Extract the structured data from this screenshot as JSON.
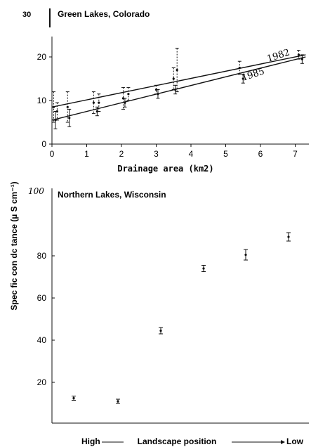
{
  "figure": {
    "shared_ylabel": "Spec fic con dc tance (µ S cm⁻¹)"
  },
  "colors": {
    "ink": "#111111",
    "paper": "#ffffff"
  },
  "chart_data": [
    {
      "type": "line",
      "title": "Green Lakes, Colorado",
      "xlabel": "Drainage area (km2)",
      "xlim": [
        0,
        7.4
      ],
      "ylim": [
        0,
        30
      ],
      "x_ticks": [
        0,
        1,
        2,
        3,
        4,
        5,
        6,
        7
      ],
      "y_ticks": [
        0,
        10,
        20
      ],
      "y_top_label": "30",
      "series": [
        {
          "name": "1982",
          "line": [
            [
              0,
              8.5
            ],
            [
              7.3,
              20.5
            ]
          ],
          "points": [
            [
              0.05,
              8.5,
              3.5
            ],
            [
              0.15,
              7.5,
              2.0
            ],
            [
              0.45,
              8.5,
              3.5
            ],
            [
              1.2,
              9.5,
              2.5
            ],
            [
              1.35,
              9.5,
              2.0
            ],
            [
              2.05,
              10.5,
              2.5
            ],
            [
              2.2,
              11.5,
              1.5
            ],
            [
              3.0,
              12.5,
              1.0
            ],
            [
              3.5,
              15.0,
              2.5
            ],
            [
              3.6,
              17.0,
              5.0
            ],
            [
              5.4,
              17.5,
              1.5
            ],
            [
              7.1,
              20.5,
              1.0
            ]
          ]
        },
        {
          "name": "1985",
          "line": [
            [
              0,
              5.5
            ],
            [
              7.3,
              20.0
            ]
          ],
          "points": [
            [
              0.1,
              5.5,
              2.0
            ],
            [
              0.5,
              6.0,
              2.0
            ],
            [
              1.3,
              7.5,
              1.0
            ],
            [
              2.1,
              9.5,
              1.0
            ],
            [
              3.05,
              11.5,
              1.0
            ],
            [
              3.55,
              12.5,
              1.0
            ],
            [
              5.5,
              15.0,
              1.0
            ],
            [
              7.2,
              19.5,
              1.0
            ]
          ]
        }
      ],
      "annotations": [
        "1982",
        "1985"
      ]
    },
    {
      "type": "scatter",
      "title": "Northern Lakes, Wisconsin",
      "xlabel": "Landscape position",
      "x_start_label": "High",
      "x_end_label": "Low",
      "ylim": [
        0,
        100
      ],
      "y_ticks": [
        20,
        40,
        60,
        80
      ],
      "y_top_label": "100",
      "x": [
        1,
        2,
        3,
        4,
        5,
        6
      ],
      "values": [
        12.5,
        11.0,
        44.5,
        74.0,
        80.5,
        89.0
      ],
      "errors": [
        1.0,
        1.0,
        1.5,
        1.5,
        2.5,
        2.0
      ]
    }
  ]
}
